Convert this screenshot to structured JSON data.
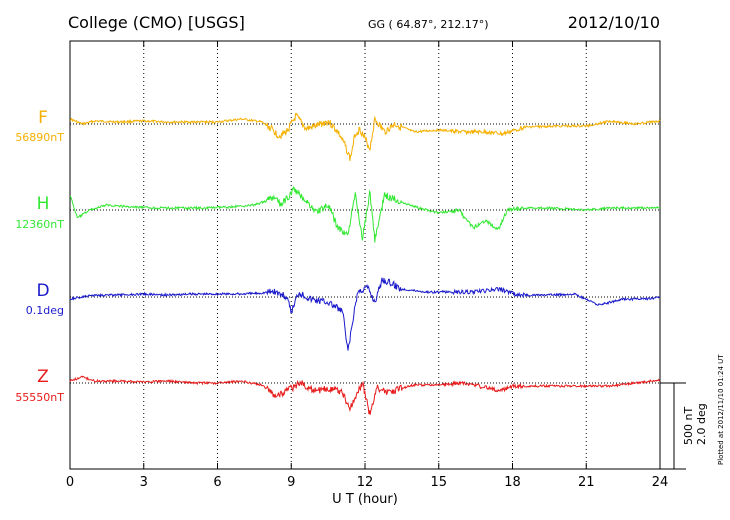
{
  "header": {
    "station": "College (CMO)  [USGS]",
    "coords": "GG ( 64.87°, 212.17°)",
    "date": "2012/10/10"
  },
  "side_note": "Plotted at 2012/11/10 01:24  UT",
  "scale_labels": [
    "500 nT",
    "2.0 deg"
  ],
  "chart_data": {
    "type": "line",
    "xlabel": "U T (hour)",
    "xlim": [
      0,
      24
    ],
    "xticks": [
      0,
      3,
      6,
      9,
      12,
      15,
      18,
      21,
      24
    ],
    "grid": "vertical dotted every 3 hours",
    "series": [
      {
        "name": "F",
        "baseline_label": "56890nT",
        "color": "#f5b000",
        "keys": [
          [
            0,
            -5
          ],
          [
            0.5,
            0
          ],
          [
            1,
            -3
          ],
          [
            2,
            -2
          ],
          [
            3,
            -3
          ],
          [
            4,
            -2
          ],
          [
            5,
            -2
          ],
          [
            6,
            -2
          ],
          [
            7,
            -5
          ],
          [
            7.8,
            -2
          ],
          [
            8.2,
            5
          ],
          [
            8.5,
            12
          ],
          [
            8.8,
            8
          ],
          [
            9.2,
            -8
          ],
          [
            9.6,
            5
          ],
          [
            10,
            2
          ],
          [
            10.5,
            -3
          ],
          [
            10.9,
            8
          ],
          [
            11.2,
            22
          ],
          [
            11.4,
            35
          ],
          [
            11.6,
            10
          ],
          [
            11.8,
            5
          ],
          [
            12.2,
            25
          ],
          [
            12.4,
            -5
          ],
          [
            12.8,
            8
          ],
          [
            13.2,
            0
          ],
          [
            14,
            8
          ],
          [
            15,
            6
          ],
          [
            16,
            8
          ],
          [
            17,
            8
          ],
          [
            17.6,
            10
          ],
          [
            18.5,
            3
          ],
          [
            20,
            2
          ],
          [
            21,
            2
          ],
          [
            22,
            -3
          ],
          [
            23,
            0
          ],
          [
            24,
            -3
          ]
        ]
      },
      {
        "name": "H",
        "baseline_label": "12360nT",
        "color": "#33e833",
        "keys": [
          [
            0,
            -15
          ],
          [
            0.3,
            8
          ],
          [
            0.8,
            0
          ],
          [
            1.5,
            -5
          ],
          [
            2.5,
            -3
          ],
          [
            3.5,
            -2
          ],
          [
            4.5,
            -2
          ],
          [
            5.5,
            -2
          ],
          [
            6.5,
            -3
          ],
          [
            7.5,
            -5
          ],
          [
            8.3,
            -12
          ],
          [
            8.6,
            -5
          ],
          [
            9.1,
            -20
          ],
          [
            9.5,
            -12
          ],
          [
            10,
            2
          ],
          [
            10.5,
            -5
          ],
          [
            10.9,
            18
          ],
          [
            11.3,
            25
          ],
          [
            11.6,
            -15
          ],
          [
            11.9,
            28
          ],
          [
            12.2,
            -18
          ],
          [
            12.4,
            30
          ],
          [
            12.8,
            -15
          ],
          [
            13.5,
            -8
          ],
          [
            14.2,
            -2
          ],
          [
            15,
            3
          ],
          [
            15.8,
            0
          ],
          [
            16.4,
            18
          ],
          [
            16.9,
            10
          ],
          [
            17.4,
            20
          ],
          [
            17.8,
            0
          ],
          [
            18.5,
            -2
          ],
          [
            19.5,
            -2
          ],
          [
            21,
            0
          ],
          [
            22,
            -2
          ],
          [
            23,
            -2
          ],
          [
            24,
            -2
          ]
        ]
      },
      {
        "name": "D",
        "baseline_label": "0.1deg",
        "color": "#1a1acc",
        "keys": [
          [
            0,
            2
          ],
          [
            1,
            -2
          ],
          [
            2,
            -2
          ],
          [
            3,
            -3
          ],
          [
            4,
            -2
          ],
          [
            5,
            -3
          ],
          [
            6,
            -3
          ],
          [
            7,
            -3
          ],
          [
            7.8,
            -4
          ],
          [
            8.3,
            -6
          ],
          [
            8.8,
            0
          ],
          [
            9,
            15
          ],
          [
            9.3,
            -5
          ],
          [
            9.8,
            2
          ],
          [
            10.5,
            5
          ],
          [
            11.1,
            15
          ],
          [
            11.3,
            55
          ],
          [
            11.5,
            25
          ],
          [
            11.7,
            -5
          ],
          [
            12.1,
            -10
          ],
          [
            12.4,
            5
          ],
          [
            12.7,
            -18
          ],
          [
            13.5,
            -8
          ],
          [
            14.5,
            -5
          ],
          [
            15.5,
            -5
          ],
          [
            16.5,
            -5
          ],
          [
            17.5,
            -8
          ],
          [
            18.2,
            -2
          ],
          [
            19.5,
            -2
          ],
          [
            20.5,
            -3
          ],
          [
            21.5,
            8
          ],
          [
            22.5,
            2
          ],
          [
            23.5,
            2
          ],
          [
            24,
            0
          ]
        ]
      },
      {
        "name": "Z",
        "baseline_label": "55550nT",
        "color": "#e81a1a",
        "keys": [
          [
            0,
            -2
          ],
          [
            0.5,
            -6
          ],
          [
            1,
            -2
          ],
          [
            2,
            -2
          ],
          [
            3,
            -1
          ],
          [
            4,
            -2
          ],
          [
            5,
            0
          ],
          [
            6,
            0
          ],
          [
            7,
            -2
          ],
          [
            7.8,
            2
          ],
          [
            8.4,
            13
          ],
          [
            8.8,
            8
          ],
          [
            9.4,
            0
          ],
          [
            10,
            8
          ],
          [
            10.5,
            5
          ],
          [
            11,
            8
          ],
          [
            11.4,
            25
          ],
          [
            11.7,
            10
          ],
          [
            11.9,
            0
          ],
          [
            12.2,
            32
          ],
          [
            12.5,
            5
          ],
          [
            13,
            10
          ],
          [
            13.5,
            5
          ],
          [
            14,
            2
          ],
          [
            15,
            2
          ],
          [
            16,
            0
          ],
          [
            17,
            5
          ],
          [
            17.5,
            8
          ],
          [
            18,
            3
          ],
          [
            19,
            3
          ],
          [
            20,
            3
          ],
          [
            21,
            3
          ],
          [
            22,
            3
          ],
          [
            23,
            0
          ],
          [
            24,
            -3
          ]
        ]
      }
    ]
  }
}
